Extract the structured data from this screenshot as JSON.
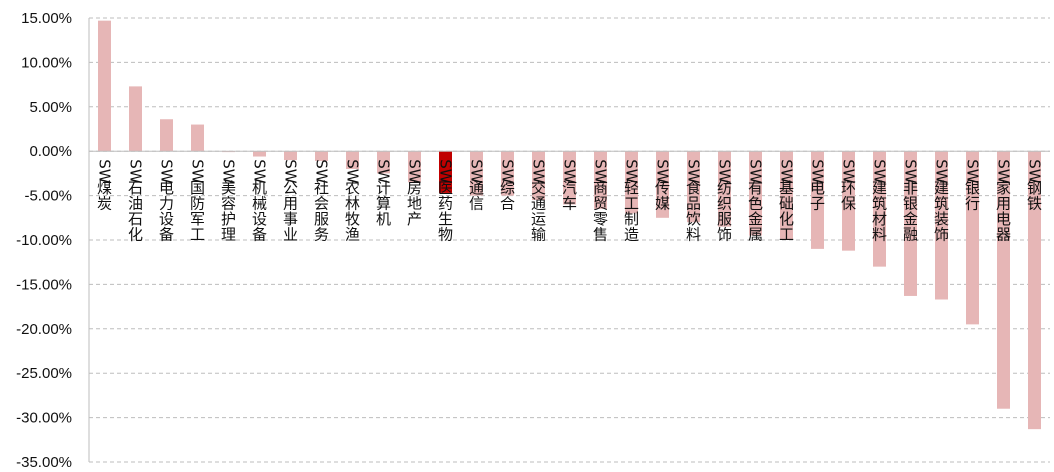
{
  "chart_data": {
    "type": "bar",
    "title": "",
    "xlabel": "",
    "ylabel": "",
    "ylim": [
      -35,
      15
    ],
    "yticks": [
      15,
      10,
      5,
      0,
      -5,
      -10,
      -15,
      -20,
      -25,
      -30,
      -35
    ],
    "ytick_labels": [
      "15.00%",
      "10.00%",
      "5.00%",
      "0.00%",
      "-5.00%",
      "-10.00%",
      "-15.00%",
      "-20.00%",
      "-25.00%",
      "-30.00%",
      "-35.00%"
    ],
    "grid": "horizontal-dashed",
    "legend": "none",
    "colors": {
      "default": "#e6b6b6",
      "highlight": "#c00000"
    },
    "highlight_index": 11,
    "categories": [
      "SW煤炭",
      "SW石油石化",
      "SW电力设备",
      "SW国防军工",
      "SW美容护理",
      "SW机械设备",
      "SW公用事业",
      "SW社会服务",
      "SW农林牧渔",
      "SW计算机",
      "SW房地产",
      "SW医药生物",
      "SW通信",
      "SW综合",
      "SW交通运输",
      "SW汽车",
      "SW商贸零售",
      "SW轻工制造",
      "SW传媒",
      "SW食品饮料",
      "SW纺织服饰",
      "SW有色金属",
      "SW基础化工",
      "SW电子",
      "SW环保",
      "SW建筑材料",
      "SW非银金融",
      "SW建筑装饰",
      "SW银行",
      "SW家用电器",
      "SW钢铁"
    ],
    "values": [
      14.7,
      7.3,
      3.6,
      3.0,
      -0.1,
      -0.6,
      -1.0,
      -1.1,
      -2.0,
      -2.5,
      -3.5,
      -4.7,
      -5.0,
      -5.0,
      -5.5,
      -6.0,
      -6.5,
      -7.0,
      -7.5,
      -8.0,
      -8.5,
      -9.5,
      -10.0,
      -11.0,
      -11.2,
      -13.0,
      -16.3,
      -16.7,
      -19.5,
      -29.0,
      -31.3
    ]
  }
}
